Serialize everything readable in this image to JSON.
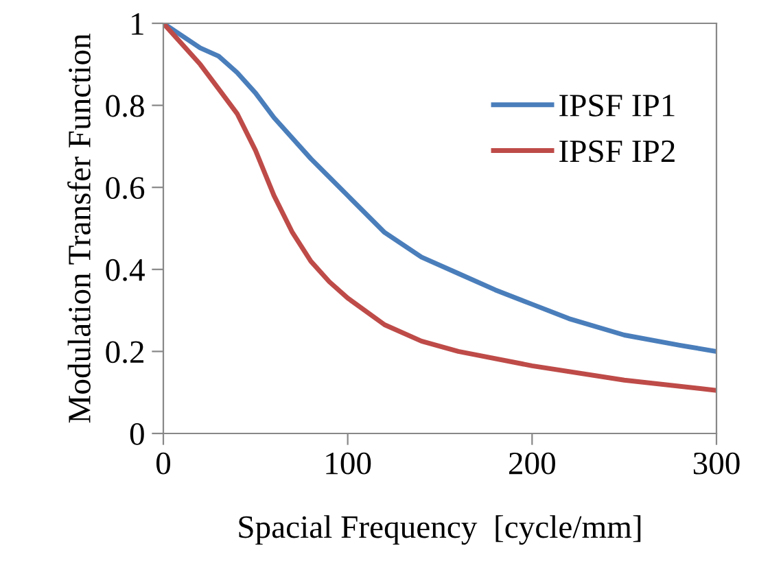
{
  "chart_data": {
    "type": "line",
    "xlabel": "Spacial Frequency  [cycle/mm]",
    "ylabel": "Modulation Transfer Function",
    "xlim": [
      0,
      300
    ],
    "xticks": [
      0,
      100,
      200,
      300
    ],
    "ylim": [
      0,
      1
    ],
    "yticks": [
      0,
      0.2,
      0.4,
      0.6,
      0.8,
      1
    ],
    "grid": false,
    "legend": "top right",
    "marker": "none",
    "line_style": "solid",
    "series": [
      {
        "name": "IPSF IP1",
        "color": "#4a7ebb",
        "x": [
          0,
          10,
          20,
          30,
          40,
          50,
          60,
          80,
          100,
          120,
          140,
          160,
          180,
          200,
          220,
          250,
          280,
          300
        ],
        "values": [
          1,
          0.97,
          0.94,
          0.92,
          0.88,
          0.83,
          0.77,
          0.67,
          0.58,
          0.49,
          0.43,
          0.39,
          0.35,
          0.315,
          0.28,
          0.24,
          0.215,
          0.2
        ]
      },
      {
        "name": "IPSF IP2",
        "color": "#be4b48",
        "x": [
          0,
          10,
          20,
          30,
          40,
          50,
          60,
          70,
          80,
          90,
          100,
          120,
          140,
          160,
          200,
          250,
          300
        ],
        "values": [
          1,
          0.95,
          0.9,
          0.84,
          0.78,
          0.69,
          0.58,
          0.49,
          0.42,
          0.37,
          0.33,
          0.265,
          0.225,
          0.2,
          0.165,
          0.13,
          0.105
        ]
      }
    ]
  }
}
